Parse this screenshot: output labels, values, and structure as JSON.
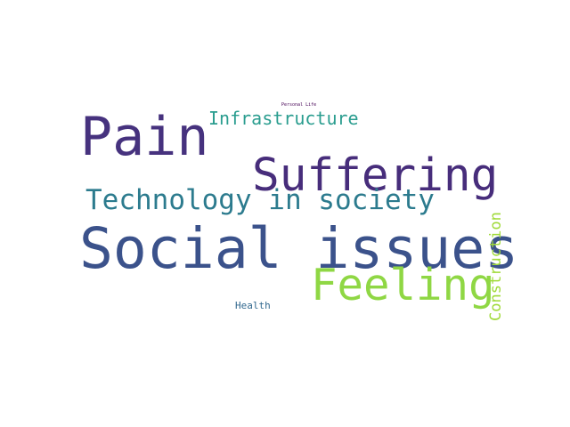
{
  "words": [
    {
      "text": "Personal Life",
      "color": "#440154"
    },
    {
      "text": "Infrastructure",
      "color": "#2a9d8f"
    },
    {
      "text": "Pain",
      "color": "#46327e"
    },
    {
      "text": "Suffering",
      "color": "#472d7b"
    },
    {
      "text": "Technology in society",
      "color": "#2c7b8e"
    },
    {
      "text": "Social issues",
      "color": "#3b528b"
    },
    {
      "text": "Feeling",
      "color": "#8fd744"
    },
    {
      "text": "Construction",
      "color": "#a0da39"
    },
    {
      "text": "Health",
      "color": "#31688e"
    }
  ]
}
